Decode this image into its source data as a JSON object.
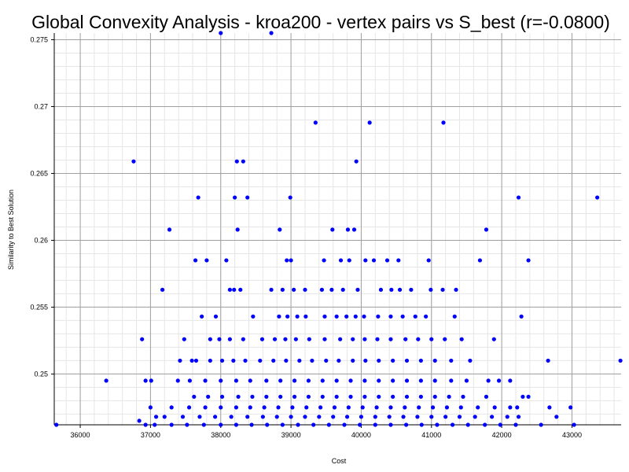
{
  "chart_data": {
    "type": "scatter",
    "title": "Global Convexity Analysis - kroa200 - vertex pairs vs S_best (r=-0.0800)",
    "xlabel": "Cost",
    "ylabel": "Similarity to Best Solution",
    "xlim": [
      35630,
      43700
    ],
    "ylim": [
      0.2462,
      0.2755
    ],
    "x_ticks": [
      36000,
      37000,
      38000,
      39000,
      40000,
      41000,
      42000,
      43000
    ],
    "y_ticks": [
      0.25,
      0.255,
      0.26,
      0.265,
      0.27,
      0.275
    ],
    "x_tick_labels": [
      "36000",
      "37000",
      "38000",
      "39000",
      "40000",
      "41000",
      "42000",
      "43000"
    ],
    "y_tick_labels": [
      "0.25",
      "0.255",
      "0.26",
      "0.265",
      "0.27",
      "0.275"
    ],
    "grid": true,
    "minor_grid": true,
    "legend": "none",
    "marker_color": "#0000ff",
    "points": [
      [
        38000,
        0.2755
      ],
      [
        38720,
        0.2755
      ],
      [
        39350,
        0.2688
      ],
      [
        40120,
        0.2688
      ],
      [
        41170,
        0.2688
      ],
      [
        36760,
        0.2659
      ],
      [
        38230,
        0.2659
      ],
      [
        38320,
        0.2659
      ],
      [
        39930,
        0.2659
      ],
      [
        37680,
        0.2632
      ],
      [
        38200,
        0.2632
      ],
      [
        38380,
        0.2632
      ],
      [
        38990,
        0.2632
      ],
      [
        42240,
        0.2632
      ],
      [
        43360,
        0.2632
      ],
      [
        37270,
        0.2608
      ],
      [
        38240,
        0.2608
      ],
      [
        38840,
        0.2608
      ],
      [
        39590,
        0.2608
      ],
      [
        39810,
        0.2608
      ],
      [
        39900,
        0.2608
      ],
      [
        41780,
        0.2608
      ],
      [
        37640,
        0.2585
      ],
      [
        37800,
        0.2585
      ],
      [
        38080,
        0.2585
      ],
      [
        38940,
        0.2585
      ],
      [
        39000,
        0.2585
      ],
      [
        39470,
        0.2585
      ],
      [
        39710,
        0.2585
      ],
      [
        39830,
        0.2585
      ],
      [
        40060,
        0.2585
      ],
      [
        40180,
        0.2585
      ],
      [
        40370,
        0.2585
      ],
      [
        40530,
        0.2585
      ],
      [
        40960,
        0.2585
      ],
      [
        41690,
        0.2585
      ],
      [
        42380,
        0.2585
      ],
      [
        37170,
        0.2563
      ],
      [
        38130,
        0.2563
      ],
      [
        38190,
        0.2563
      ],
      [
        38280,
        0.2563
      ],
      [
        38720,
        0.2563
      ],
      [
        38880,
        0.2563
      ],
      [
        39040,
        0.2563
      ],
      [
        39200,
        0.2563
      ],
      [
        39440,
        0.2563
      ],
      [
        39580,
        0.2563
      ],
      [
        39740,
        0.2563
      ],
      [
        39950,
        0.2563
      ],
      [
        40280,
        0.2563
      ],
      [
        40430,
        0.2563
      ],
      [
        40550,
        0.2563
      ],
      [
        40710,
        0.2563
      ],
      [
        40990,
        0.2563
      ],
      [
        41160,
        0.2563
      ],
      [
        41350,
        0.2563
      ],
      [
        37730,
        0.2543
      ],
      [
        37930,
        0.2543
      ],
      [
        38460,
        0.2543
      ],
      [
        38830,
        0.2543
      ],
      [
        38950,
        0.2543
      ],
      [
        39090,
        0.2543
      ],
      [
        39210,
        0.2543
      ],
      [
        39480,
        0.2543
      ],
      [
        39650,
        0.2543
      ],
      [
        39790,
        0.2543
      ],
      [
        39920,
        0.2543
      ],
      [
        40040,
        0.2543
      ],
      [
        40240,
        0.2543
      ],
      [
        40420,
        0.2543
      ],
      [
        40590,
        0.2543
      ],
      [
        40770,
        0.2543
      ],
      [
        40920,
        0.2543
      ],
      [
        41330,
        0.2543
      ],
      [
        42280,
        0.2543
      ],
      [
        37480,
        0.2526
      ],
      [
        37850,
        0.2526
      ],
      [
        37980,
        0.2526
      ],
      [
        38130,
        0.2526
      ],
      [
        38320,
        0.2526
      ],
      [
        38590,
        0.2526
      ],
      [
        38770,
        0.2526
      ],
      [
        38920,
        0.2526
      ],
      [
        39070,
        0.2526
      ],
      [
        39260,
        0.2526
      ],
      [
        39480,
        0.2526
      ],
      [
        39700,
        0.2526
      ],
      [
        39880,
        0.2526
      ],
      [
        40050,
        0.2526
      ],
      [
        40230,
        0.2526
      ],
      [
        40420,
        0.2526
      ],
      [
        40630,
        0.2526
      ],
      [
        40810,
        0.2526
      ],
      [
        41000,
        0.2526
      ],
      [
        41190,
        0.2526
      ],
      [
        41430,
        0.2526
      ],
      [
        41890,
        0.2526
      ],
      [
        36880,
        0.2526
      ],
      [
        37420,
        0.251
      ],
      [
        37650,
        0.251
      ],
      [
        37850,
        0.251
      ],
      [
        38020,
        0.251
      ],
      [
        38180,
        0.251
      ],
      [
        38350,
        0.251
      ],
      [
        38560,
        0.251
      ],
      [
        38750,
        0.251
      ],
      [
        38930,
        0.251
      ],
      [
        39120,
        0.251
      ],
      [
        39300,
        0.251
      ],
      [
        39500,
        0.251
      ],
      [
        39680,
        0.251
      ],
      [
        39880,
        0.251
      ],
      [
        40060,
        0.251
      ],
      [
        40250,
        0.251
      ],
      [
        40450,
        0.251
      ],
      [
        40650,
        0.251
      ],
      [
        40850,
        0.251
      ],
      [
        41050,
        0.251
      ],
      [
        41280,
        0.251
      ],
      [
        41550,
        0.251
      ],
      [
        42660,
        0.251
      ],
      [
        43690,
        0.251
      ],
      [
        37590,
        0.251
      ],
      [
        36370,
        0.2495
      ],
      [
        36930,
        0.2495
      ],
      [
        37010,
        0.2495
      ],
      [
        37390,
        0.2495
      ],
      [
        37560,
        0.2495
      ],
      [
        37780,
        0.2495
      ],
      [
        38000,
        0.2495
      ],
      [
        38220,
        0.2495
      ],
      [
        38420,
        0.2495
      ],
      [
        38650,
        0.2495
      ],
      [
        38850,
        0.2495
      ],
      [
        39050,
        0.2495
      ],
      [
        39250,
        0.2495
      ],
      [
        39450,
        0.2495
      ],
      [
        39650,
        0.2495
      ],
      [
        39850,
        0.2495
      ],
      [
        40050,
        0.2495
      ],
      [
        40250,
        0.2495
      ],
      [
        40450,
        0.2495
      ],
      [
        40650,
        0.2495
      ],
      [
        40850,
        0.2495
      ],
      [
        41050,
        0.2495
      ],
      [
        41280,
        0.2495
      ],
      [
        41500,
        0.2495
      ],
      [
        41810,
        0.2495
      ],
      [
        41960,
        0.2495
      ],
      [
        42120,
        0.2495
      ],
      [
        37620,
        0.2483
      ],
      [
        37820,
        0.2483
      ],
      [
        38020,
        0.2483
      ],
      [
        38250,
        0.2483
      ],
      [
        38450,
        0.2483
      ],
      [
        38650,
        0.2483
      ],
      [
        38850,
        0.2483
      ],
      [
        39050,
        0.2483
      ],
      [
        39250,
        0.2483
      ],
      [
        39450,
        0.2483
      ],
      [
        39650,
        0.2483
      ],
      [
        39850,
        0.2483
      ],
      [
        40050,
        0.2483
      ],
      [
        40250,
        0.2483
      ],
      [
        40450,
        0.2483
      ],
      [
        40650,
        0.2483
      ],
      [
        40850,
        0.2483
      ],
      [
        41050,
        0.2483
      ],
      [
        41250,
        0.2483
      ],
      [
        41450,
        0.2483
      ],
      [
        41780,
        0.2483
      ],
      [
        42300,
        0.2483
      ],
      [
        42380,
        0.2483
      ],
      [
        37300,
        0.2475
      ],
      [
        37550,
        0.2475
      ],
      [
        37780,
        0.2475
      ],
      [
        38000,
        0.2475
      ],
      [
        38220,
        0.2475
      ],
      [
        38420,
        0.2475
      ],
      [
        38620,
        0.2475
      ],
      [
        38820,
        0.2475
      ],
      [
        39020,
        0.2475
      ],
      [
        39220,
        0.2475
      ],
      [
        39420,
        0.2475
      ],
      [
        39620,
        0.2475
      ],
      [
        39820,
        0.2475
      ],
      [
        40020,
        0.2475
      ],
      [
        40220,
        0.2475
      ],
      [
        40420,
        0.2475
      ],
      [
        40620,
        0.2475
      ],
      [
        40820,
        0.2475
      ],
      [
        41020,
        0.2475
      ],
      [
        41220,
        0.2475
      ],
      [
        41420,
        0.2475
      ],
      [
        41660,
        0.2475
      ],
      [
        41900,
        0.2475
      ],
      [
        42120,
        0.2475
      ],
      [
        42220,
        0.2475
      ],
      [
        37200,
        0.2468
      ],
      [
        37460,
        0.2468
      ],
      [
        37700,
        0.2468
      ],
      [
        37920,
        0.2468
      ],
      [
        38150,
        0.2468
      ],
      [
        38380,
        0.2468
      ],
      [
        38600,
        0.2468
      ],
      [
        38800,
        0.2468
      ],
      [
        39000,
        0.2468
      ],
      [
        39200,
        0.2468
      ],
      [
        39400,
        0.2468
      ],
      [
        39600,
        0.2468
      ],
      [
        39800,
        0.2468
      ],
      [
        40000,
        0.2468
      ],
      [
        40200,
        0.2468
      ],
      [
        40400,
        0.2468
      ],
      [
        40600,
        0.2468
      ],
      [
        40800,
        0.2468
      ],
      [
        41000,
        0.2468
      ],
      [
        41200,
        0.2468
      ],
      [
        41400,
        0.2468
      ],
      [
        41620,
        0.2468
      ],
      [
        41860,
        0.2468
      ],
      [
        42080,
        0.2468
      ],
      [
        42240,
        0.2468
      ],
      [
        37060,
        0.2462
      ],
      [
        37300,
        0.2462
      ],
      [
        37520,
        0.2462
      ],
      [
        37760,
        0.2462
      ],
      [
        38000,
        0.2462
      ],
      [
        38220,
        0.2462
      ],
      [
        38440,
        0.2462
      ],
      [
        38660,
        0.2462
      ],
      [
        38880,
        0.2462
      ],
      [
        39100,
        0.2462
      ],
      [
        39320,
        0.2462
      ],
      [
        39540,
        0.2462
      ],
      [
        39760,
        0.2462
      ],
      [
        39980,
        0.2462
      ],
      [
        40200,
        0.2462
      ],
      [
        40420,
        0.2462
      ],
      [
        40640,
        0.2462
      ],
      [
        40860,
        0.2462
      ],
      [
        41080,
        0.2462
      ],
      [
        41300,
        0.2462
      ],
      [
        41520,
        0.2462
      ],
      [
        41760,
        0.2462
      ],
      [
        41980,
        0.2462
      ],
      [
        42200,
        0.2462
      ],
      [
        36840,
        0.2465
      ],
      [
        37080,
        0.2468
      ],
      [
        37000,
        0.2475
      ],
      [
        36930,
        0.2462
      ],
      [
        42680,
        0.2475
      ],
      [
        42780,
        0.2468
      ],
      [
        42980,
        0.2475
      ],
      [
        43030,
        0.2462
      ],
      [
        42560,
        0.2462
      ],
      [
        35660,
        0.2462
      ]
    ]
  }
}
